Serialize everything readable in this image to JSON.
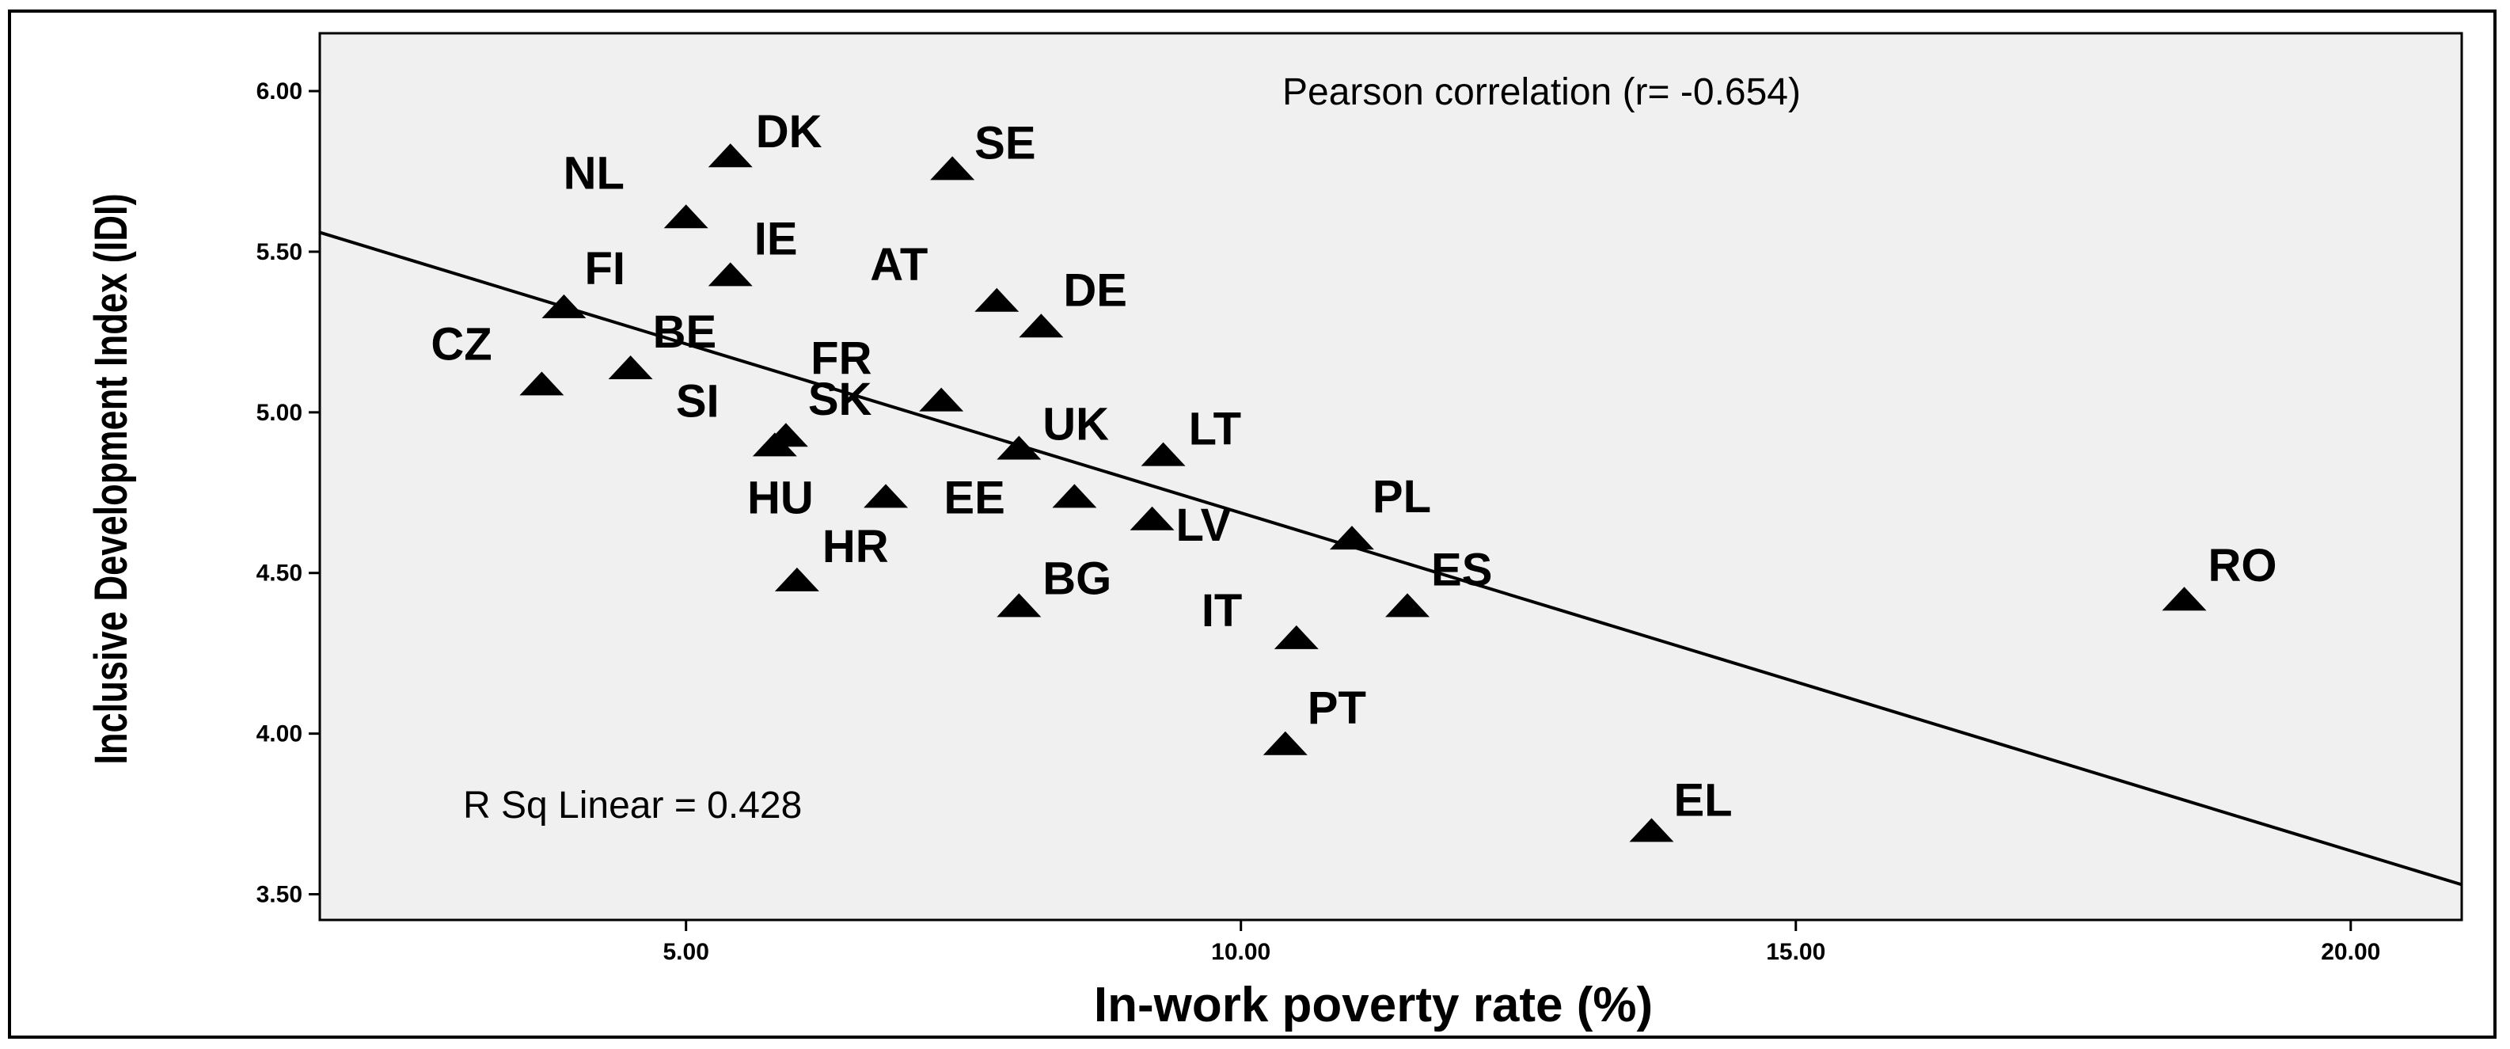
{
  "chart_data": {
    "type": "scatter",
    "xlabel": "In-work poverty rate (%)",
    "ylabel": "Inclusive Development Index (IDI)",
    "xlim": [
      1.7,
      21.0
    ],
    "ylim": [
      3.42,
      6.18
    ],
    "x_ticks": [
      "5.00",
      "10.00",
      "15.00",
      "20.00"
    ],
    "x_tick_values": [
      5,
      10,
      15,
      20
    ],
    "y_ticks": [
      "6.00",
      "5.50",
      "5.00",
      "4.50",
      "4.00",
      "3.50"
    ],
    "y_tick_values": [
      6.0,
      5.5,
      5.0,
      4.5,
      4.0,
      3.5
    ],
    "grid": false,
    "marker": "triangle",
    "annotations": {
      "pearson": "Pearson correlation (r= -0.654)",
      "r_squared": "R Sq Linear = 0.428"
    },
    "fit_line": {
      "x": [
        1.7,
        21.0
      ],
      "y": [
        5.56,
        3.53
      ]
    },
    "points": [
      {
        "label": "DK",
        "x": 5.4,
        "y": 5.8
      },
      {
        "label": "SE",
        "x": 7.4,
        "y": 5.76
      },
      {
        "label": "NL",
        "x": 5.0,
        "y": 5.61
      },
      {
        "label": "IE",
        "x": 5.4,
        "y": 5.43
      },
      {
        "label": "AT",
        "x": 7.8,
        "y": 5.35
      },
      {
        "label": "DE",
        "x": 8.2,
        "y": 5.27
      },
      {
        "label": "FI",
        "x": 3.9,
        "y": 5.33
      },
      {
        "label": "BE",
        "x": 4.5,
        "y": 5.14
      },
      {
        "label": "CZ",
        "x": 3.7,
        "y": 5.09
      },
      {
        "label": "FR",
        "x": 7.3,
        "y": 5.04
      },
      {
        "label": "SI",
        "x": 5.8,
        "y": 4.9
      },
      {
        "label": "SK",
        "x": 5.9,
        "y": 4.93
      },
      {
        "label": "UK",
        "x": 8.0,
        "y": 4.89
      },
      {
        "label": "LT",
        "x": 9.3,
        "y": 4.87
      },
      {
        "label": "HU",
        "x": 6.8,
        "y": 4.74
      },
      {
        "label": "EE",
        "x": 8.5,
        "y": 4.74
      },
      {
        "label": "LV",
        "x": 9.2,
        "y": 4.67
      },
      {
        "label": "PL",
        "x": 11.0,
        "y": 4.61
      },
      {
        "label": "HR",
        "x": 6.0,
        "y": 4.48
      },
      {
        "label": "BG",
        "x": 8.0,
        "y": 4.4
      },
      {
        "label": "IT",
        "x": 10.5,
        "y": 4.3
      },
      {
        "label": "ES",
        "x": 11.5,
        "y": 4.4
      },
      {
        "label": "RO",
        "x": 18.5,
        "y": 4.42
      },
      {
        "label": "PT",
        "x": 10.4,
        "y": 3.97
      },
      {
        "label": "EL",
        "x": 13.7,
        "y": 3.7
      }
    ]
  }
}
